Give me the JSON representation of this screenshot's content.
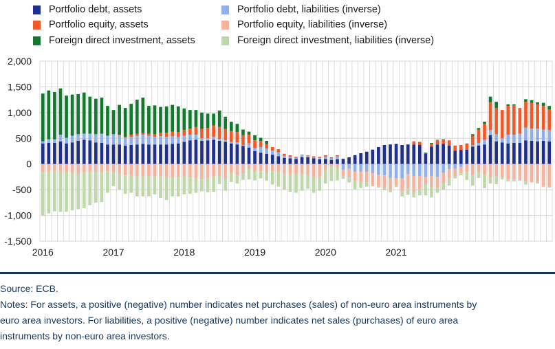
{
  "legend": [
    {
      "label": "Portfolio debt, assets",
      "color": "#1f2f8c"
    },
    {
      "label": "Portfolio equity, assets",
      "color": "#f05a28"
    },
    {
      "label": "Foreign direct investment, assets",
      "color": "#117a2e"
    },
    {
      "label": "Portfolio debt, liabilities (inverse)",
      "color": "#8fb0ea"
    },
    {
      "label": "Portfolio equity, liabilities (inverse)",
      "color": "#f5b39e"
    },
    {
      "label": "Foreign direct investment, liabilities (inverse)",
      "color": "#bfd8a9"
    }
  ],
  "chart_data": {
    "type": "bar",
    "stacked": true,
    "title": "",
    "xlabel": "",
    "ylabel": "",
    "ylim": [
      -1500,
      2000
    ],
    "yticks": [
      -1500,
      -1000,
      -500,
      0,
      500,
      1000,
      1500,
      2000
    ],
    "ytick_labels": [
      "-1,500",
      "-1,000",
      "-500",
      "0",
      "500",
      "1,000",
      "1,500",
      "2,000"
    ],
    "xtick_labels": [
      "2016",
      "2017",
      "2018",
      "2019",
      "2020",
      "2021"
    ],
    "grid": true,
    "legend_position": "top",
    "categories_note": "monthly, Jan 2016 to Dec 2021",
    "series": [
      {
        "name": "Portfolio debt, assets",
        "values": [
          400,
          410,
          410,
          440,
          400,
          420,
          450,
          470,
          460,
          420,
          410,
          380,
          380,
          380,
          360,
          370,
          380,
          390,
          380,
          380,
          380,
          380,
          390,
          400,
          430,
          460,
          470,
          450,
          460,
          470,
          450,
          430,
          400,
          380,
          350,
          320,
          250,
          220,
          200,
          180,
          150,
          120,
          110,
          100,
          130,
          130,
          110,
          90,
          100,
          80,
          90,
          100,
          130,
          170,
          210,
          240,
          280,
          330,
          370,
          380,
          390,
          370,
          380,
          380,
          370,
          200,
          340,
          380,
          390,
          360,
          260,
          270,
          280,
          340,
          360,
          380,
          560,
          440,
          420,
          400,
          410,
          410,
          460,
          450,
          440,
          450,
          440
        ]
      },
      {
        "name": "Portfolio equity, assets",
        "values": [
          0,
          0,
          0,
          0,
          0,
          0,
          0,
          0,
          0,
          0,
          0,
          0,
          0,
          10,
          20,
          40,
          40,
          30,
          40,
          50,
          70,
          80,
          90,
          100,
          110,
          120,
          150,
          180,
          200,
          220,
          230,
          220,
          210,
          200,
          190,
          170,
          150,
          120,
          90,
          70,
          60,
          40,
          30,
          20,
          10,
          10,
          20,
          20,
          30,
          20,
          20,
          0,
          0,
          0,
          0,
          0,
          0,
          0,
          0,
          0,
          0,
          0,
          0,
          60,
          60,
          0,
          50,
          80,
          80,
          100,
          100,
          100,
          120,
          180,
          260,
          310,
          540,
          510,
          550,
          560,
          570,
          500,
          500,
          500,
          470,
          460,
          400
        ]
      },
      {
        "name": "Foreign direct investment, assets",
        "values": [
          930,
          950,
          920,
          900,
          820,
          800,
          780,
          800,
          720,
          690,
          700,
          580,
          470,
          580,
          560,
          600,
          660,
          690,
          540,
          560,
          500,
          510,
          520,
          500,
          420,
          360,
          330,
          320,
          280,
          230,
          320,
          240,
          180,
          160,
          110,
          60,
          100,
          60,
          60,
          0,
          0,
          0,
          0,
          0,
          0,
          0,
          0,
          0,
          0,
          0,
          0,
          0,
          0,
          0,
          0,
          0,
          0,
          0,
          0,
          0,
          0,
          0,
          0,
          0,
          0,
          20,
          20,
          10,
          10,
          0,
          0,
          0,
          0,
          30,
          30,
          40,
          110,
          120,
          0,
          30,
          20,
          0,
          50,
          50,
          40,
          60,
          70
        ]
      },
      {
        "name": "Portfolio debt, liabilities (inverse)",
        "values": [
          40,
          70,
          70,
          130,
          110,
          130,
          130,
          120,
          130,
          160,
          180,
          170,
          200,
          180,
          150,
          160,
          170,
          180,
          170,
          150,
          160,
          150,
          150,
          120,
          120,
          110,
          100,
          50,
          40,
          60,
          40,
          30,
          30,
          40,
          20,
          80,
          60,
          110,
          100,
          80,
          80,
          40,
          30,
          20,
          40,
          30,
          20,
          30,
          40,
          30,
          60,
          -110,
          -90,
          -150,
          -150,
          -150,
          -180,
          -210,
          -220,
          -270,
          -280,
          -280,
          -200,
          -230,
          -230,
          -250,
          -230,
          -250,
          -170,
          -100,
          -90,
          -60,
          0,
          30,
          50,
          90,
          100,
          140,
          80,
          170,
          160,
          180,
          250,
          240,
          250,
          220,
          220
        ]
      },
      {
        "name": "Portfolio equity, liabilities (inverse)",
        "values": [
          -160,
          -150,
          -140,
          -140,
          -150,
          -170,
          -190,
          -160,
          -150,
          -150,
          -150,
          -140,
          -150,
          -200,
          -220,
          -210,
          -240,
          -240,
          -230,
          -240,
          -240,
          -250,
          -250,
          -260,
          -230,
          -260,
          -270,
          -300,
          -280,
          -240,
          -230,
          -280,
          -170,
          -220,
          -180,
          -100,
          -150,
          -140,
          -170,
          -140,
          -150,
          -200,
          -190,
          -190,
          -200,
          -210,
          -250,
          -250,
          -120,
          -50,
          -70,
          -130,
          -170,
          -180,
          -200,
          -210,
          -250,
          -220,
          -250,
          -230,
          -140,
          -250,
          -280,
          -320,
          -260,
          -140,
          -220,
          -210,
          -200,
          -180,
          -150,
          -120,
          -150,
          -220,
          -150,
          -210,
          -260,
          -240,
          -260,
          -300,
          -300,
          -310,
          -340,
          -350,
          -350,
          -430,
          -440
        ]
      },
      {
        "name": "Foreign direct investment, liabilities (inverse)",
        "values": [
          -850,
          -810,
          -780,
          -790,
          -780,
          -730,
          -690,
          -700,
          -650,
          -600,
          -590,
          -420,
          -280,
          -300,
          -360,
          -350,
          -390,
          -390,
          -400,
          -350,
          -420,
          -450,
          -380,
          -370,
          -360,
          -320,
          -290,
          -230,
          -270,
          -300,
          -160,
          -240,
          -180,
          -160,
          -130,
          -200,
          -170,
          -140,
          -150,
          -260,
          -290,
          -300,
          -350,
          -370,
          -320,
          -270,
          -310,
          -270,
          -260,
          -280,
          -250,
          -50,
          -100,
          -160,
          -120,
          -80,
          0,
          -30,
          -40,
          -50,
          -30,
          -100,
          -120,
          -100,
          -120,
          -220,
          -200,
          -100,
          -130,
          -140,
          -40,
          -40,
          -160,
          -200,
          -120,
          -260,
          -120,
          -150,
          -40,
          -40,
          -40,
          -20,
          -60,
          -10,
          -30,
          -20,
          -20
        ]
      }
    ]
  },
  "footer": {
    "source": "Source: ECB.",
    "notes_lines": [
      "Notes: For assets, a positive (negative) number indicates net purchases (sales) of non-euro area instruments by",
      "euro area investors. For liabilities, a positive (negative) number indicates net sales (purchases) of euro area",
      "instruments by non-euro area investors."
    ]
  }
}
